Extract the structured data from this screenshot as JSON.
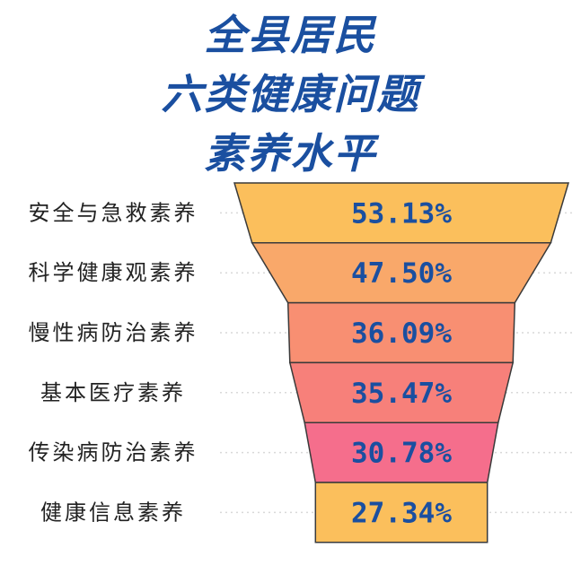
{
  "title_lines": [
    "全县居民",
    "六类健康问题",
    "素养水平"
  ],
  "colors": {
    "title": "#1a4fa0",
    "value_text": "#1a4fa0",
    "label_text": "#222222",
    "stroke": "#3a3a3a",
    "dots": "#d9d9d9"
  },
  "chart_data": {
    "type": "bar",
    "subtype": "funnel",
    "title": "全县居民六类健康问题素养水平",
    "categories": [
      "安全与急救素养",
      "科学健康观素养",
      "慢性病防治素养",
      "基本医疗素养",
      "传染病防治素养",
      "健康信息素养"
    ],
    "values": [
      53.13,
      47.5,
      36.09,
      35.47,
      30.78,
      27.34
    ],
    "value_labels": [
      "53.13%",
      "47.50%",
      "36.09%",
      "35.47%",
      "30.78%",
      "27.34%"
    ],
    "unit": "%",
    "fill_colors": [
      "#fbbf5c",
      "#f9a86a",
      "#f88f72",
      "#f7807a",
      "#f56e8c",
      "#fbbf5c"
    ]
  }
}
